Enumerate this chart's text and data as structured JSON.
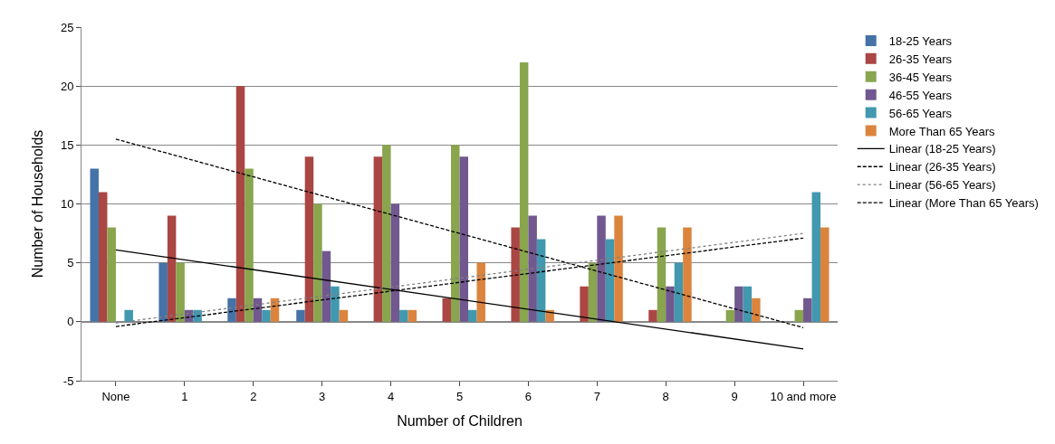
{
  "chart_data": {
    "type": "bar",
    "xlabel": "Number of Children",
    "ylabel": "Number of Households",
    "categories": [
      "None",
      "1",
      "2",
      "3",
      "4",
      "5",
      "6",
      "7",
      "8",
      "9",
      "10 and more"
    ],
    "series": [
      {
        "name": "18-25 Years",
        "color": "#4572a7",
        "values": [
          13,
          5,
          2,
          1,
          0,
          0,
          0,
          0,
          0,
          0,
          0
        ]
      },
      {
        "name": "26-35 Years",
        "color": "#aa4643",
        "values": [
          11,
          9,
          20,
          14,
          14,
          2,
          8,
          3,
          1,
          0,
          0
        ]
      },
      {
        "name": "36-45 Years",
        "color": "#89a54e",
        "values": [
          8,
          5,
          13,
          10,
          15,
          15,
          22,
          5,
          8,
          1,
          1
        ]
      },
      {
        "name": "46-55 Years",
        "color": "#71588f",
        "values": [
          0,
          1,
          2,
          6,
          10,
          14,
          9,
          9,
          3,
          3,
          2
        ]
      },
      {
        "name": "56-65 Years",
        "color": "#4198af",
        "values": [
          1,
          1,
          1,
          3,
          1,
          1,
          7,
          7,
          5,
          3,
          11
        ]
      },
      {
        "name": "More Than 65 Years",
        "color": "#db843d",
        "values": [
          0,
          0,
          2,
          1,
          1,
          5,
          1,
          9,
          8,
          2,
          8
        ]
      },
      {
        "name": "Linear (18-25 Years)",
        "type": "line",
        "color": "#000000",
        "line_style": "solid",
        "x": [
          "None",
          "10 and more"
        ],
        "values": [
          6.1,
          -2.3
        ]
      },
      {
        "name": "Linear (26-35 Years)",
        "type": "line",
        "color": "#000000",
        "line_style": "dashed",
        "x": [
          "None",
          "10 and more"
        ],
        "values": [
          15.5,
          -0.5
        ]
      },
      {
        "name": "Linear (56-65 Years)",
        "type": "line",
        "color": "#808080",
        "line_style": "dotted",
        "x": [
          "None",
          "10 and more"
        ],
        "values": [
          -0.1,
          7.5
        ]
      },
      {
        "name": "Linear (More Than 65 Years)",
        "type": "line",
        "color": "#000000",
        "line_style": "dashed",
        "x": [
          "None",
          "10 and more"
        ],
        "values": [
          -0.4,
          7.1
        ]
      }
    ],
    "ylim": [
      -5,
      25
    ],
    "yticks": [
      -5,
      0,
      5,
      10,
      15,
      20,
      25
    ],
    "grid": "y",
    "legend": "right"
  }
}
